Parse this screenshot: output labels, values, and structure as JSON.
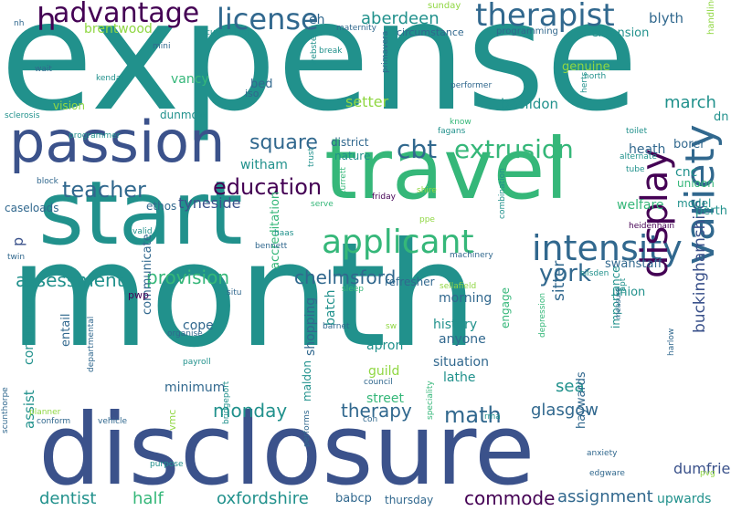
{
  "palette": {
    "purple": "#440154",
    "indigo": "#3b528b",
    "blue": "#31688e",
    "teal": "#21918c",
    "green": "#35b779",
    "lime": "#90d743",
    "yellow": "#c8e020"
  },
  "words": [
    "expense",
    "month",
    "disclosure",
    "travel",
    "start",
    "passion",
    "applicant",
    "intensity",
    "advantage",
    "therapist",
    "license",
    "h",
    "variety",
    "display",
    "extrusion",
    "cbt",
    "education",
    "teacher",
    "square",
    "york",
    "provision",
    "assessment",
    "chelmsford",
    "math",
    "monday",
    "commode",
    "assignment",
    "oxfordshire",
    "dentist",
    "half",
    "therapy",
    "glasgow",
    "buckinghamshire",
    "sitter",
    "sea",
    "dumfries",
    "upwards",
    "setter",
    "march",
    "basildon",
    "aberdeen",
    "brentwood",
    "blyth",
    "extension",
    "eh",
    "vancy",
    "genuine",
    "tyneside",
    "witham",
    "heath",
    "borer",
    "cnc",
    "welfare",
    "swanstaff",
    "morning",
    "history",
    "anyone",
    "engage",
    "situation",
    "apron",
    "lathe",
    "guild",
    "street",
    "batch",
    "shopping",
    "cope",
    "minimum",
    "assist",
    "continence",
    "entail",
    "communicate",
    "accreditation",
    "haywards",
    "perth",
    "dn",
    "unioon",
    "model",
    "union",
    "importance",
    "bed",
    "iso",
    "district",
    "nature",
    "dunmow",
    "vision",
    "p",
    "caseloads",
    "ethos",
    "babcp",
    "thursday",
    "maldon",
    "vmc",
    "pwp",
    "refresher",
    "sunday",
    "maternity",
    "circumstance",
    "programming",
    "curriculum",
    "mini",
    "wait",
    "nh",
    "kendal",
    "sclerosis",
    "programmer",
    "fagans",
    "performer",
    "primavera",
    "webster",
    "break",
    "north",
    "herts",
    "toilet",
    "alternate",
    "tube",
    "handling",
    "know",
    "trust",
    "friday",
    "shire",
    "serve",
    "turrett",
    "block",
    "heidenhain",
    "haas",
    "bennett",
    "valid",
    "machinery",
    "sellafield",
    "silsden",
    "iapt",
    "situ",
    "sleep",
    "twin",
    "ppe",
    "combination",
    "organise",
    "payroll",
    "barnet",
    "sw",
    "departmental",
    "council",
    "con",
    "rma",
    "depression",
    "measure",
    "harlow",
    "speciality",
    "planner",
    "conform",
    "vehicle",
    "scunthorpe",
    "bridgeport",
    "purpose",
    "performs",
    "anxiety",
    "edgware",
    "pvg"
  ]
}
